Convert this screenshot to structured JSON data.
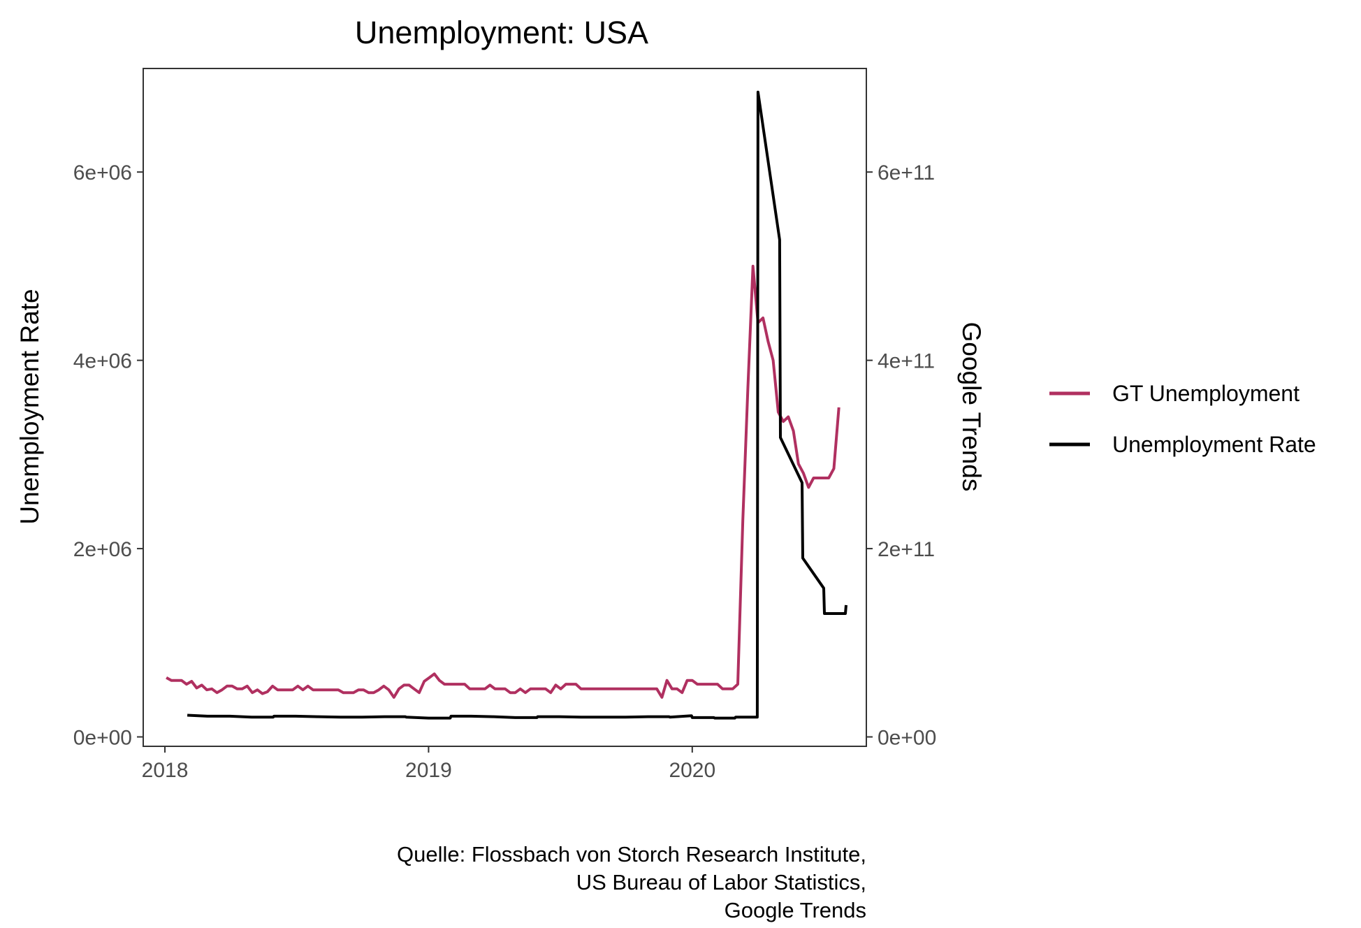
{
  "chart_data": {
    "type": "line",
    "title": "Unemployment: USA",
    "ylabel": "Unemployment Rate",
    "y2label": "Google Trends",
    "x_ticks": [
      "2018",
      "2019",
      "2020"
    ],
    "y_ticks": [
      "0e+00",
      "2e+06",
      "4e+06",
      "6e+06"
    ],
    "y2_ticks": [
      "0e+00",
      "2e+11",
      "4e+11",
      "6e+11"
    ],
    "ylim": [
      -100000,
      7100000
    ],
    "y2lim": [
      -10000000000,
      710000000000
    ],
    "xlim": [
      "2017-12-02",
      "2020-08-29"
    ],
    "grid": false,
    "legend_position": "right",
    "caption_lines": [
      "Quelle: Flossbach von Storch Research Institute,",
      "US Bureau of Labor Statistics,",
      "Google Trends"
    ],
    "series": [
      {
        "name": "GT Unemployment",
        "color": "#B03060",
        "axis": "left",
        "points": [
          [
            "2018-01-03",
            630000
          ],
          [
            "2018-01-10",
            600000
          ],
          [
            "2018-01-17",
            600000
          ],
          [
            "2018-01-24",
            600000
          ],
          [
            "2018-01-31",
            560000
          ],
          [
            "2018-02-07",
            590000
          ],
          [
            "2018-02-14",
            520000
          ],
          [
            "2018-02-21",
            550000
          ],
          [
            "2018-02-28",
            500000
          ],
          [
            "2018-03-07",
            510000
          ],
          [
            "2018-03-14",
            470000
          ],
          [
            "2018-03-21",
            500000
          ],
          [
            "2018-03-28",
            540000
          ],
          [
            "2018-04-04",
            540000
          ],
          [
            "2018-04-11",
            510000
          ],
          [
            "2018-04-18",
            510000
          ],
          [
            "2018-04-25",
            540000
          ],
          [
            "2018-05-02",
            470000
          ],
          [
            "2018-05-09",
            500000
          ],
          [
            "2018-05-16",
            460000
          ],
          [
            "2018-05-23",
            480000
          ],
          [
            "2018-05-30",
            540000
          ],
          [
            "2018-06-06",
            500000
          ],
          [
            "2018-06-13",
            500000
          ],
          [
            "2018-06-20",
            500000
          ],
          [
            "2018-06-27",
            500000
          ],
          [
            "2018-07-04",
            540000
          ],
          [
            "2018-07-11",
            500000
          ],
          [
            "2018-07-18",
            540000
          ],
          [
            "2018-07-25",
            500000
          ],
          [
            "2018-08-01",
            500000
          ],
          [
            "2018-08-08",
            500000
          ],
          [
            "2018-08-15",
            500000
          ],
          [
            "2018-08-22",
            500000
          ],
          [
            "2018-08-29",
            500000
          ],
          [
            "2018-09-05",
            470000
          ],
          [
            "2018-09-12",
            470000
          ],
          [
            "2018-09-19",
            470000
          ],
          [
            "2018-09-26",
            500000
          ],
          [
            "2018-10-03",
            500000
          ],
          [
            "2018-10-10",
            470000
          ],
          [
            "2018-10-17",
            470000
          ],
          [
            "2018-10-24",
            500000
          ],
          [
            "2018-10-31",
            540000
          ],
          [
            "2018-11-07",
            500000
          ],
          [
            "2018-11-14",
            420000
          ],
          [
            "2018-11-21",
            510000
          ],
          [
            "2018-11-28",
            550000
          ],
          [
            "2018-12-05",
            550000
          ],
          [
            "2018-12-12",
            510000
          ],
          [
            "2018-12-19",
            470000
          ],
          [
            "2018-12-26",
            590000
          ],
          [
            "2019-01-02",
            630000
          ],
          [
            "2019-01-09",
            670000
          ],
          [
            "2019-01-16",
            600000
          ],
          [
            "2019-01-23",
            560000
          ],
          [
            "2019-01-30",
            560000
          ],
          [
            "2019-02-06",
            560000
          ],
          [
            "2019-02-13",
            560000
          ],
          [
            "2019-02-20",
            560000
          ],
          [
            "2019-02-27",
            510000
          ],
          [
            "2019-03-06",
            510000
          ],
          [
            "2019-03-13",
            510000
          ],
          [
            "2019-03-20",
            510000
          ],
          [
            "2019-03-27",
            550000
          ],
          [
            "2019-04-03",
            510000
          ],
          [
            "2019-04-10",
            510000
          ],
          [
            "2019-04-17",
            510000
          ],
          [
            "2019-04-24",
            470000
          ],
          [
            "2019-05-01",
            470000
          ],
          [
            "2019-05-08",
            510000
          ],
          [
            "2019-05-15",
            470000
          ],
          [
            "2019-05-22",
            510000
          ],
          [
            "2019-05-29",
            510000
          ],
          [
            "2019-06-05",
            510000
          ],
          [
            "2019-06-12",
            510000
          ],
          [
            "2019-06-19",
            470000
          ],
          [
            "2019-06-26",
            550000
          ],
          [
            "2019-07-03",
            510000
          ],
          [
            "2019-07-10",
            560000
          ],
          [
            "2019-07-17",
            560000
          ],
          [
            "2019-07-24",
            560000
          ],
          [
            "2019-07-31",
            510000
          ],
          [
            "2019-08-07",
            510000
          ],
          [
            "2019-08-14",
            510000
          ],
          [
            "2019-08-21",
            510000
          ],
          [
            "2019-08-28",
            510000
          ],
          [
            "2019-09-04",
            510000
          ],
          [
            "2019-09-11",
            510000
          ],
          [
            "2019-09-18",
            510000
          ],
          [
            "2019-09-25",
            510000
          ],
          [
            "2019-10-02",
            510000
          ],
          [
            "2019-10-09",
            510000
          ],
          [
            "2019-10-16",
            510000
          ],
          [
            "2019-10-23",
            510000
          ],
          [
            "2019-10-30",
            510000
          ],
          [
            "2019-11-06",
            510000
          ],
          [
            "2019-11-13",
            510000
          ],
          [
            "2019-11-20",
            420000
          ],
          [
            "2019-11-27",
            600000
          ],
          [
            "2019-12-04",
            510000
          ],
          [
            "2019-12-11",
            510000
          ],
          [
            "2019-12-18",
            470000
          ],
          [
            "2019-12-25",
            600000
          ],
          [
            "2020-01-01",
            600000
          ],
          [
            "2020-01-08",
            560000
          ],
          [
            "2020-01-15",
            560000
          ],
          [
            "2020-01-22",
            560000
          ],
          [
            "2020-01-29",
            560000
          ],
          [
            "2020-02-05",
            560000
          ],
          [
            "2020-02-12",
            510000
          ],
          [
            "2020-02-19",
            510000
          ],
          [
            "2020-02-26",
            510000
          ],
          [
            "2020-03-04",
            560000
          ],
          [
            "2020-03-11",
            2300000
          ],
          [
            "2020-03-18",
            3700000
          ],
          [
            "2020-03-25",
            5000000
          ],
          [
            "2020-04-01",
            4400000
          ],
          [
            "2020-04-08",
            4450000
          ],
          [
            "2020-04-15",
            4200000
          ],
          [
            "2020-04-22",
            4000000
          ],
          [
            "2020-04-29",
            3450000
          ],
          [
            "2020-05-06",
            3350000
          ],
          [
            "2020-05-13",
            3400000
          ],
          [
            "2020-05-20",
            3250000
          ],
          [
            "2020-05-27",
            2900000
          ],
          [
            "2020-06-03",
            2800000
          ],
          [
            "2020-06-10",
            2650000
          ],
          [
            "2020-06-17",
            2750000
          ],
          [
            "2020-06-24",
            2750000
          ],
          [
            "2020-07-01",
            2750000
          ],
          [
            "2020-07-08",
            2750000
          ],
          [
            "2020-07-15",
            2850000
          ],
          [
            "2020-07-22",
            3500000
          ]
        ]
      },
      {
        "name": "Unemployment Rate",
        "color": "#000000",
        "axis": "right",
        "points": [
          [
            "2018-02-01",
            23000000000
          ],
          [
            "2018-03-01",
            22000000000
          ],
          [
            "2018-03-31",
            22000000000
          ],
          [
            "2018-04-01",
            22000000000
          ],
          [
            "2018-05-01",
            21000000000
          ],
          [
            "2018-05-31",
            21000000000
          ],
          [
            "2018-06-01",
            22000000000
          ],
          [
            "2018-07-01",
            22000000000
          ],
          [
            "2018-07-31",
            21500000000
          ],
          [
            "2018-08-01",
            21500000000
          ],
          [
            "2018-09-01",
            21000000000
          ],
          [
            "2018-09-30",
            21000000000
          ],
          [
            "2018-10-01",
            21000000000
          ],
          [
            "2018-11-01",
            21500000000
          ],
          [
            "2018-11-30",
            21500000000
          ],
          [
            "2018-12-01",
            21000000000
          ],
          [
            "2019-01-01",
            20000000000
          ],
          [
            "2019-01-31",
            20000000000
          ],
          [
            "2019-02-01",
            22000000000
          ],
          [
            "2019-03-01",
            22000000000
          ],
          [
            "2019-03-31",
            21500000000
          ],
          [
            "2019-04-01",
            21500000000
          ],
          [
            "2019-05-01",
            20500000000
          ],
          [
            "2019-05-31",
            20500000000
          ],
          [
            "2019-06-01",
            21500000000
          ],
          [
            "2019-07-01",
            21500000000
          ],
          [
            "2019-07-31",
            21000000000
          ],
          [
            "2019-08-01",
            21000000000
          ],
          [
            "2019-09-01",
            21000000000
          ],
          [
            "2019-09-30",
            21000000000
          ],
          [
            "2019-10-01",
            21000000000
          ],
          [
            "2019-11-01",
            21500000000
          ],
          [
            "2019-11-30",
            21500000000
          ],
          [
            "2019-12-01",
            21000000000
          ],
          [
            "2019-12-31",
            22500000000
          ],
          [
            "2020-01-01",
            20500000000
          ],
          [
            "2020-01-31",
            20500000000
          ],
          [
            "2020-02-01",
            20000000000
          ],
          [
            "2020-02-29",
            20000000000
          ],
          [
            "2020-03-01",
            21000000000
          ],
          [
            "2020-03-31",
            21000000000
          ],
          [
            "2020-04-01",
            685000000000
          ],
          [
            "2020-05-01",
            528000000000
          ],
          [
            "2020-05-02",
            318000000000
          ],
          [
            "2020-06-01",
            270000000000
          ],
          [
            "2020-06-02",
            190000000000
          ],
          [
            "2020-07-01",
            158000000000
          ],
          [
            "2020-07-02",
            131000000000
          ],
          [
            "2020-07-31",
            131000000000
          ],
          [
            "2020-08-01",
            140000000000
          ]
        ]
      }
    ]
  }
}
